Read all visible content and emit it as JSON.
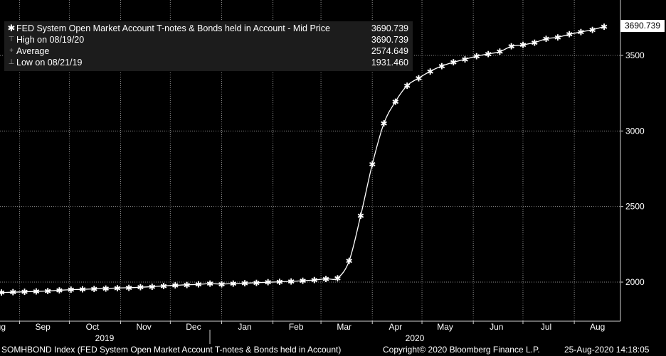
{
  "legend": {
    "series_label": "FED System Open Market Account T-notes & Bonds held in Account - Mid Price",
    "series_value": "3690.739",
    "high_label": "High on 08/19/20",
    "high_value": "3690.739",
    "avg_label": "Average",
    "avg_value": "2574.649",
    "low_label": "Low on 08/21/19",
    "low_value": "1931.460"
  },
  "last_value_label": "3690.739",
  "footer": {
    "index": "SOMHBOND Index (FED System Open Market Account T-notes & Bonds held in Account)",
    "copyright": "Copyright© 2020 Bloomberg Finance L.P.",
    "timestamp": "25-Aug-2020 14:18:05"
  },
  "colors": {
    "background": "#000000",
    "line": "#ffffff",
    "grid": "#8a8a8a",
    "legend_bg": "#1c1c1c"
  },
  "chart_data": {
    "type": "line",
    "title": "",
    "xlabel": "",
    "ylabel": "",
    "ylim": [
      1800,
      3800
    ],
    "y_ticks": [
      2000,
      2500,
      3000,
      3500
    ],
    "y_tick_labels": [
      "2000",
      "2500",
      "3000",
      "3500"
    ],
    "x_month_labels": [
      "Aug",
      "Sep",
      "Oct",
      "Nov",
      "Dec",
      "Jan",
      "Feb",
      "Mar",
      "Apr",
      "May",
      "Jun",
      "Jul",
      "Aug"
    ],
    "x_year_labels": [
      "2019",
      "2020"
    ],
    "grid": true,
    "series": [
      {
        "name": "FED System Open Market Account T-notes & Bonds held in Account - Mid Price",
        "marker": "star",
        "x": [
          "2019-08-21",
          "2019-08-28",
          "2019-09-04",
          "2019-09-11",
          "2019-09-18",
          "2019-09-25",
          "2019-10-02",
          "2019-10-09",
          "2019-10-16",
          "2019-10-23",
          "2019-10-30",
          "2019-11-06",
          "2019-11-13",
          "2019-11-20",
          "2019-11-27",
          "2019-12-04",
          "2019-12-11",
          "2019-12-18",
          "2019-12-25",
          "2020-01-01",
          "2020-01-08",
          "2020-01-15",
          "2020-01-22",
          "2020-01-29",
          "2020-02-05",
          "2020-02-12",
          "2020-02-19",
          "2020-02-26",
          "2020-03-04",
          "2020-03-11",
          "2020-03-18",
          "2020-03-25",
          "2020-04-01",
          "2020-04-08",
          "2020-04-15",
          "2020-04-22",
          "2020-04-29",
          "2020-05-06",
          "2020-05-13",
          "2020-05-20",
          "2020-05-27",
          "2020-06-03",
          "2020-06-10",
          "2020-06-17",
          "2020-06-24",
          "2020-07-01",
          "2020-07-08",
          "2020-07-15",
          "2020-07-22",
          "2020-07-29",
          "2020-08-05",
          "2020-08-12",
          "2020-08-19"
        ],
        "y": [
          1931.46,
          1933,
          1936,
          1938,
          1941,
          1946,
          1950,
          1952,
          1955,
          1958,
          1961,
          1963,
          1966,
          1970,
          1975,
          1979,
          1982,
          1985,
          1990,
          1987,
          1990,
          1993,
          1996,
          1999,
          2002,
          2005,
          2009,
          2014,
          2022,
          2027,
          2140,
          2440,
          2780,
          3050,
          3195,
          3300,
          3350,
          3395,
          3430,
          3455,
          3475,
          3495,
          3510,
          3525,
          3560,
          3570,
          3585,
          3610,
          3620,
          3640,
          3655,
          3670,
          3690.739
        ]
      }
    ]
  }
}
